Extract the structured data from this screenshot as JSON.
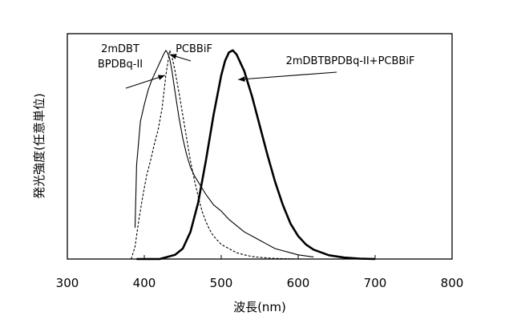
{
  "chart_data": {
    "type": "line",
    "xlabel": "波長(nm)",
    "ylabel": "発光強度(任意単位)",
    "xlim": [
      300,
      800
    ],
    "ylim": [
      0,
      1.08
    ],
    "xticks": [
      "300",
      "400",
      "500",
      "600",
      "700",
      "800"
    ],
    "grid": false,
    "annotations": [
      {
        "text_lines": [
          "2mDBT",
          "BPDBq-II"
        ],
        "points_to_x": 427,
        "points_to_y": 0.88
      },
      {
        "text_lines": [
          "PCBBiF"
        ],
        "points_to_x": 433,
        "points_to_y": 0.98
      },
      {
        "text_lines": [
          "2mDBTBPDBq-II+PCBBiF"
        ],
        "points_to_x": 522,
        "points_to_y": 0.86
      }
    ],
    "series": [
      {
        "style": "thin-solid",
        "x": [
          388,
          390,
          395,
          400,
          405,
          410,
          415,
          420,
          425,
          428,
          430,
          433,
          436,
          440,
          445,
          450,
          455,
          460,
          465,
          470,
          475,
          480,
          490,
          500,
          510,
          520,
          530,
          540,
          550,
          560,
          570,
          580,
          590,
          600,
          620
        ],
        "y": [
          0.15,
          0.45,
          0.66,
          0.74,
          0.81,
          0.86,
          0.9,
          0.94,
          0.98,
          1.0,
          0.99,
          0.96,
          0.9,
          0.8,
          0.68,
          0.58,
          0.5,
          0.44,
          0.4,
          0.37,
          0.34,
          0.31,
          0.26,
          0.23,
          0.19,
          0.16,
          0.13,
          0.11,
          0.09,
          0.07,
          0.05,
          0.04,
          0.03,
          0.02,
          0.01
        ]
      },
      {
        "style": "dashed",
        "x": [
          383,
          388,
          393,
          398,
          403,
          408,
          413,
          418,
          423,
          428,
          433,
          436,
          440,
          445,
          450,
          455,
          460,
          465,
          470,
          475,
          480,
          485,
          490,
          500,
          510,
          520,
          530,
          540,
          550,
          560,
          570,
          580,
          600
        ],
        "y": [
          0.0,
          0.06,
          0.19,
          0.3,
          0.4,
          0.47,
          0.55,
          0.62,
          0.72,
          0.88,
          1.0,
          0.97,
          0.9,
          0.8,
          0.69,
          0.58,
          0.47,
          0.38,
          0.3,
          0.23,
          0.18,
          0.14,
          0.11,
          0.07,
          0.05,
          0.03,
          0.02,
          0.012,
          0.008,
          0.005,
          0.003,
          0.002,
          0.0
        ]
      },
      {
        "style": "thick-solid",
        "x": [
          390,
          420,
          440,
          450,
          460,
          470,
          480,
          490,
          500,
          505,
          510,
          515,
          520,
          530,
          540,
          550,
          560,
          570,
          580,
          590,
          600,
          610,
          620,
          640,
          660,
          680,
          700
        ],
        "y": [
          0.0,
          0.0,
          0.02,
          0.05,
          0.13,
          0.27,
          0.47,
          0.69,
          0.88,
          0.95,
          0.99,
          1.0,
          0.98,
          0.9,
          0.78,
          0.64,
          0.5,
          0.37,
          0.26,
          0.17,
          0.11,
          0.07,
          0.045,
          0.018,
          0.007,
          0.002,
          0.0
        ]
      }
    ]
  }
}
